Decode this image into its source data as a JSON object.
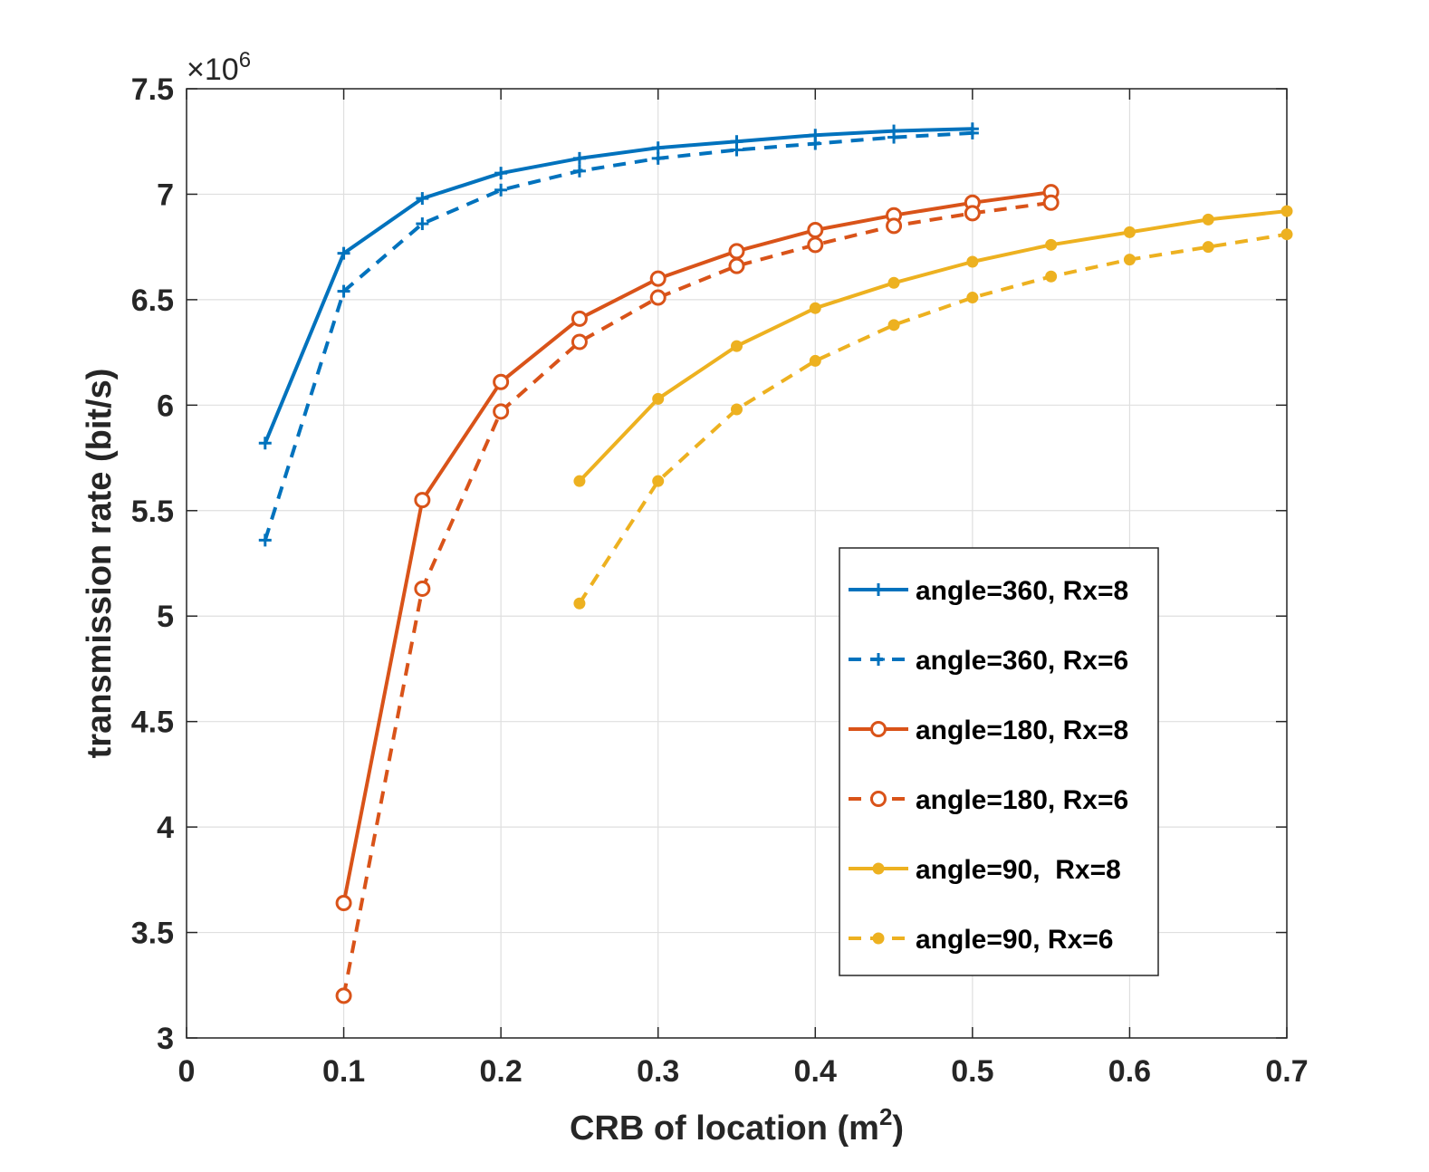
{
  "chart_data": {
    "type": "line",
    "title": "",
    "xlabel": "CRB of location",
    "xlabel_unit_base": "m",
    "xlabel_unit_exp": "2",
    "ylabel": "transmission rate (bit/s)",
    "y_multiplier_label": "×10",
    "y_multiplier_exp": "6",
    "xlim": [
      0,
      0.7
    ],
    "ylim": [
      3,
      7.5
    ],
    "xticks": [
      0,
      0.1,
      0.2,
      0.3,
      0.4,
      0.5,
      0.6,
      0.7
    ],
    "xtick_labels": [
      "0",
      "0.1",
      "0.2",
      "0.3",
      "0.4",
      "0.5",
      "0.6",
      "0.7"
    ],
    "yticks": [
      3,
      3.5,
      4,
      4.5,
      5,
      5.5,
      6,
      6.5,
      7,
      7.5
    ],
    "ytick_labels": [
      "3",
      "3.5",
      "4",
      "4.5",
      "5",
      "5.5",
      "6",
      "6.5",
      "7",
      "7.5"
    ],
    "grid": true,
    "legend_position": "right",
    "series": [
      {
        "name": "angle=360, Rx=8",
        "color": "#0072BD",
        "dash": "solid",
        "marker": "plus",
        "x": [
          0.05,
          0.1,
          0.15,
          0.2,
          0.25,
          0.3,
          0.35,
          0.4,
          0.45,
          0.5
        ],
        "y": [
          5.82,
          6.72,
          6.98,
          7.1,
          7.17,
          7.22,
          7.25,
          7.28,
          7.3,
          7.31
        ]
      },
      {
        "name": "angle=360, Rx=6",
        "color": "#0072BD",
        "dash": "dashed",
        "marker": "plus",
        "x": [
          0.05,
          0.1,
          0.15,
          0.2,
          0.25,
          0.3,
          0.35,
          0.4,
          0.45,
          0.5
        ],
        "y": [
          5.36,
          6.54,
          6.86,
          7.02,
          7.11,
          7.17,
          7.21,
          7.24,
          7.27,
          7.29
        ]
      },
      {
        "name": "angle=180, Rx=8",
        "color": "#D95319",
        "dash": "solid",
        "marker": "circle",
        "x": [
          0.1,
          0.15,
          0.2,
          0.25,
          0.3,
          0.35,
          0.4,
          0.45,
          0.5,
          0.55
        ],
        "y": [
          3.64,
          5.55,
          6.11,
          6.41,
          6.6,
          6.73,
          6.83,
          6.9,
          6.96,
          7.01
        ]
      },
      {
        "name": "angle=180, Rx=6",
        "color": "#D95319",
        "dash": "dashed",
        "marker": "circle",
        "x": [
          0.1,
          0.15,
          0.2,
          0.25,
          0.3,
          0.35,
          0.4,
          0.45,
          0.5,
          0.55
        ],
        "y": [
          3.2,
          5.13,
          5.97,
          6.3,
          6.51,
          6.66,
          6.76,
          6.85,
          6.91,
          6.96
        ]
      },
      {
        "name": "angle=90,  Rx=8",
        "color": "#EDB120",
        "dash": "solid",
        "marker": "dot",
        "x": [
          0.25,
          0.3,
          0.35,
          0.4,
          0.45,
          0.5,
          0.55,
          0.6,
          0.65,
          0.7
        ],
        "y": [
          5.64,
          6.03,
          6.28,
          6.46,
          6.58,
          6.68,
          6.76,
          6.82,
          6.88,
          6.92
        ]
      },
      {
        "name": "angle=90, Rx=6",
        "color": "#EDB120",
        "dash": "dashed",
        "marker": "dot",
        "x": [
          0.25,
          0.3,
          0.35,
          0.4,
          0.45,
          0.5,
          0.55,
          0.6,
          0.65,
          0.7
        ],
        "y": [
          5.06,
          5.64,
          5.98,
          6.21,
          6.38,
          6.51,
          6.61,
          6.69,
          6.75,
          6.81
        ]
      }
    ]
  }
}
